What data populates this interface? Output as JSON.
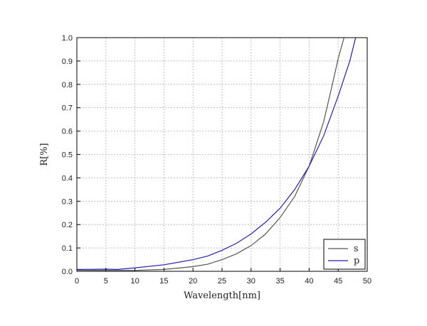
{
  "chart_data": {
    "type": "line",
    "xlabel": "Wavelength[nm]",
    "ylabel": "R[%]",
    "xlim": [
      0,
      50
    ],
    "ylim": [
      0,
      1.0
    ],
    "xticks": [
      "0",
      "5",
      "10",
      "15",
      "20",
      "25",
      "30",
      "35",
      "40",
      "45",
      "50"
    ],
    "yticks": [
      "0.0",
      "0.1",
      "0.2",
      "0.3",
      "0.4",
      "0.5",
      "0.6",
      "0.7",
      "0.8",
      "0.9",
      "1.0"
    ],
    "grid": true,
    "legend_position": "bottom-right",
    "series": [
      {
        "name": "s",
        "color": "#555555",
        "x": [
          0,
          5,
          10,
          15,
          20,
          22.5,
          25,
          27.5,
          30,
          32.5,
          35,
          37.5,
          40,
          42.5,
          44,
          45,
          46
        ],
        "y": [
          0.005,
          0.004,
          0.004,
          0.008,
          0.02,
          0.03,
          0.05,
          0.075,
          0.11,
          0.16,
          0.23,
          0.32,
          0.45,
          0.64,
          0.8,
          0.91,
          1.0
        ]
      },
      {
        "name": "p",
        "color": "#2222aa",
        "x": [
          0,
          5,
          7,
          10,
          15,
          20,
          22.5,
          25,
          27.5,
          30,
          32.5,
          35,
          37.5,
          40,
          42.5,
          45,
          47,
          48
        ],
        "y": [
          0.008,
          0.009,
          0.008,
          0.015,
          0.028,
          0.05,
          0.065,
          0.09,
          0.12,
          0.16,
          0.21,
          0.27,
          0.35,
          0.45,
          0.58,
          0.75,
          0.9,
          1.0
        ]
      }
    ]
  }
}
